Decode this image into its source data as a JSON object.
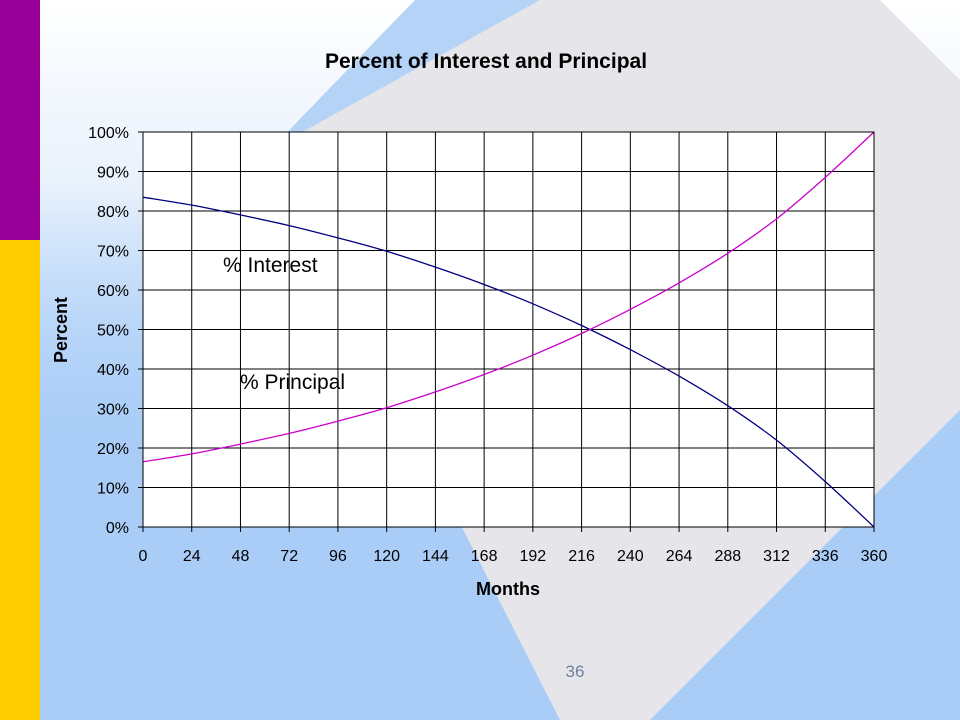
{
  "slide": {
    "page_number": "36",
    "colors": {
      "accent_purple": "#990099",
      "accent_yellow": "#ffcc00",
      "background_blue": "#a9cdf7",
      "diamond_gray": "#e6e6ea"
    }
  },
  "chart_data": {
    "type": "line",
    "title": "Percent of Interest and Principal",
    "xlabel": "Months",
    "ylabel": "Percent",
    "xlim": [
      0,
      360
    ],
    "ylim": [
      0,
      100
    ],
    "x_ticks": [
      "0",
      "24",
      "48",
      "72",
      "96",
      "120",
      "144",
      "168",
      "192",
      "216",
      "240",
      "264",
      "288",
      "312",
      "336",
      "360"
    ],
    "y_ticks": [
      "0%",
      "10%",
      "20%",
      "30%",
      "40%",
      "50%",
      "60%",
      "70%",
      "80%",
      "90%",
      "100%"
    ],
    "grid": true,
    "legend": "none",
    "annotations": [
      {
        "text": "% Interest",
        "series": "interest"
      },
      {
        "text": "% Principal",
        "series": "principal"
      }
    ],
    "series": [
      {
        "id": "interest",
        "color": "#000080",
        "x": [
          0,
          24,
          48,
          72,
          96,
          120,
          144,
          168,
          192,
          216,
          240,
          264,
          288,
          312,
          336,
          360
        ],
        "values": [
          83.5,
          81.5,
          79,
          76.3,
          73.2,
          69.8,
          65.8,
          61.4,
          56.5,
          51,
          44.9,
          38.2,
          30.7,
          22,
          11.5,
          0
        ]
      },
      {
        "id": "principal",
        "color": "#cc00cc",
        "x": [
          0,
          24,
          48,
          72,
          96,
          120,
          144,
          168,
          192,
          216,
          240,
          264,
          288,
          312,
          336,
          360
        ],
        "values": [
          16.5,
          18.5,
          21,
          23.7,
          26.8,
          30.2,
          34.2,
          38.6,
          43.5,
          49,
          55.1,
          61.8,
          69.3,
          78,
          88.5,
          100
        ]
      }
    ]
  }
}
